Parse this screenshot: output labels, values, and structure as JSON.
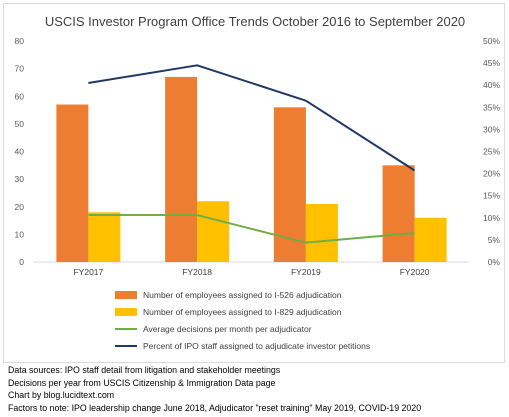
{
  "chart_data": {
    "type": "bar+line",
    "title": "USCIS Investor Program Office Trends October 2016 to September 2020",
    "categories": [
      "FY2017",
      "FY2018",
      "FY2019",
      "FY2020"
    ],
    "bar_series": [
      {
        "name": "Number of employees assigned to I-526 adjudication",
        "values": [
          57,
          67,
          56,
          35
        ],
        "color": "#ed7d31"
      },
      {
        "name": "Number of employees assigned to I-829 adjudication",
        "values": [
          18,
          22,
          21,
          16
        ],
        "color": "#ffc000"
      }
    ],
    "line_series": [
      {
        "name": "Average decisions per month per adjudicator",
        "values": [
          17,
          17,
          7,
          10.5
        ],
        "axis": "left",
        "color": "#70ad47"
      },
      {
        "name": "Percent of IPO staff assigned to adjudicate investor petitions",
        "values": [
          40.5,
          44.5,
          36.5,
          20.7
        ],
        "axis": "right",
        "color": "#203864"
      }
    ],
    "left_axis": {
      "min": 0,
      "max": 80,
      "step": 10,
      "ticks": [
        "0",
        "10",
        "20",
        "30",
        "40",
        "50",
        "60",
        "70",
        "80"
      ]
    },
    "right_axis": {
      "min": 0,
      "max": 50,
      "step": 5,
      "ticks": [
        "0%",
        "5%",
        "10%",
        "15%",
        "20%",
        "25%",
        "30%",
        "35%",
        "40%",
        "45%",
        "50%"
      ]
    },
    "grid": false,
    "legend_position": "bottom"
  },
  "footnotes": [
    "Data sources: IPO staff detail from litigation and stakeholder meetings",
    "Decisions per year from USCIS Citizenship & Immigration Data page",
    "Chart by blog.lucidtext.com",
    "Factors to note: IPO leadership change June 2018, Adjudicator \"reset training\" May 2019, COVID-19 2020"
  ]
}
